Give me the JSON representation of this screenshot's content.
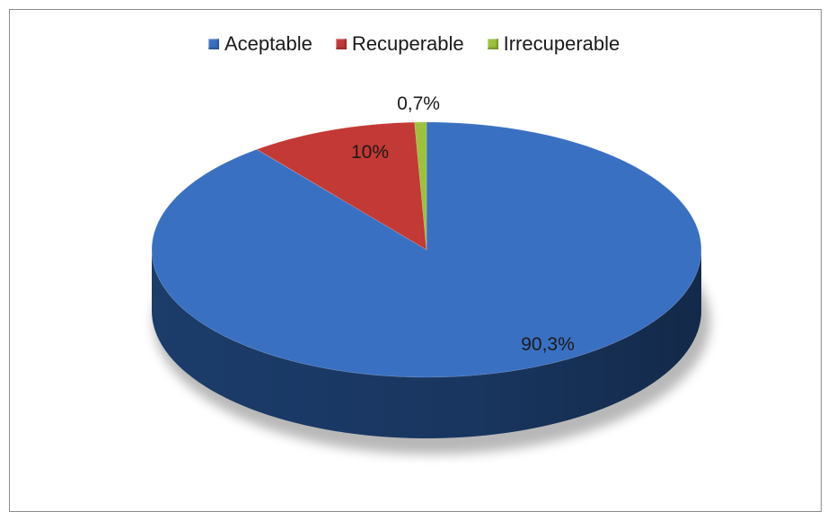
{
  "chart_data": {
    "type": "pie",
    "title": "",
    "legend_position": "top",
    "slices": [
      {
        "name": "Aceptable",
        "value": 90.3,
        "label": "90,3%",
        "color": "#3a70c2",
        "side_color": "#1d3f70"
      },
      {
        "name": "Recuperable",
        "value": 10,
        "label": "10%",
        "color": "#c33935",
        "side_color": "#7a1f1d"
      },
      {
        "name": "Irrecuperable",
        "value": 0.7,
        "label": "0,7%",
        "color": "#9bc23a",
        "side_color": "#5f7a1d"
      }
    ]
  }
}
